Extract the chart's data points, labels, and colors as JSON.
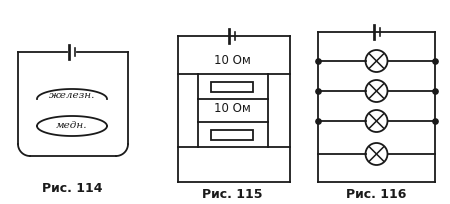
{
  "bg_color": "#ffffff",
  "line_color": "#1a1a1a",
  "fig114_label": "Рис. 114",
  "fig115_label": "Рис. 115",
  "fig116_label": "Рис. 116",
  "text_zheleznaya": "железн.",
  "text_mednaya": "медн.",
  "text_10om_top": "10 Ом",
  "text_10om_bot": "10 Ом",
  "label_fontsize": 9,
  "circuit_fontsize": 8.5
}
